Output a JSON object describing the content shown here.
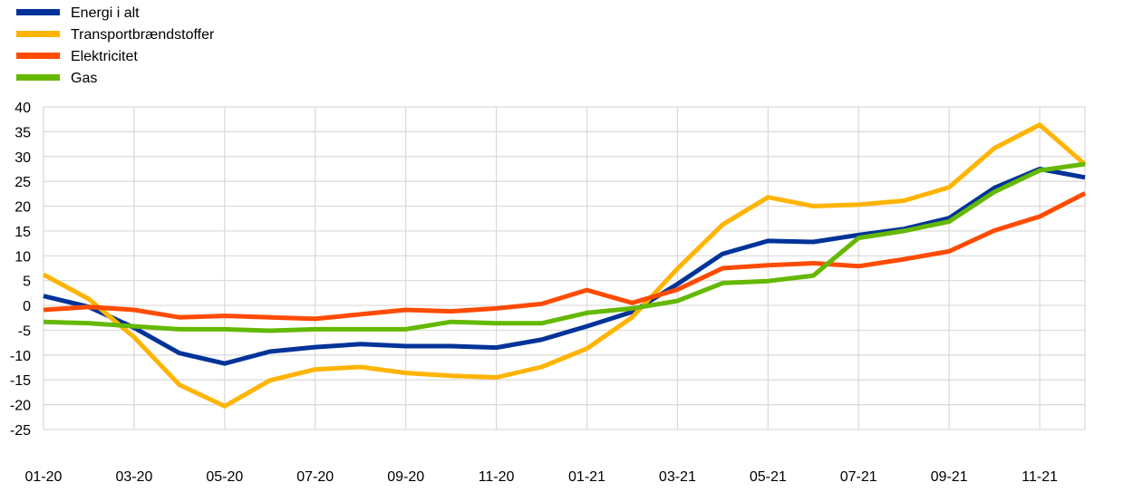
{
  "chart_data": {
    "type": "line",
    "x": [
      "01-20",
      "02-20",
      "03-20",
      "04-20",
      "05-20",
      "06-20",
      "07-20",
      "08-20",
      "09-20",
      "10-20",
      "11-20",
      "12-20",
      "01-21",
      "02-21",
      "03-21",
      "04-21",
      "05-21",
      "06-21",
      "07-21",
      "08-21",
      "09-21",
      "10-21",
      "11-21",
      "12-21"
    ],
    "x_tick_labels": [
      "01-20",
      "03-20",
      "05-20",
      "07-20",
      "09-20",
      "11-20",
      "01-21",
      "03-21",
      "05-21",
      "07-21",
      "09-21",
      "11-21"
    ],
    "y_ticks": [
      40,
      35,
      30,
      25,
      20,
      15,
      10,
      5,
      0,
      -5,
      -10,
      -15,
      -20,
      -25
    ],
    "ylim": [
      -25,
      40
    ],
    "grid": true,
    "legend_position": "top-left",
    "series": [
      {
        "name": "Energi i alt",
        "color": "#003399",
        "values": [
          1.9,
          -0.3,
          -4.5,
          -9.6,
          -11.7,
          -9.3,
          -8.4,
          -7.8,
          -8.2,
          -8.2,
          -8.5,
          -6.9,
          -4.2,
          -1.3,
          4.3,
          10.4,
          13.0,
          12.8,
          14.2,
          15.4,
          17.6,
          23.7,
          27.5,
          25.8
        ]
      },
      {
        "name": "Transportbrændstoffer",
        "color": "#FFB400",
        "values": [
          6.2,
          1.3,
          -6.4,
          -16.0,
          -20.3,
          -15.1,
          -12.9,
          -12.4,
          -13.6,
          -14.2,
          -14.5,
          -12.4,
          -8.7,
          -2.4,
          7.4,
          16.3,
          21.8,
          20.0,
          20.3,
          21.1,
          23.8,
          31.7,
          36.4,
          28.4
        ]
      },
      {
        "name": "Elektricitet",
        "color": "#FF4B00",
        "values": [
          -0.9,
          -0.3,
          -0.9,
          -2.4,
          -2.1,
          -2.4,
          -2.7,
          -1.8,
          -0.9,
          -1.2,
          -0.6,
          0.3,
          3.1,
          0.5,
          3.2,
          7.5,
          8.1,
          8.5,
          7.9,
          9.3,
          10.9,
          15.1,
          17.9,
          22.6
        ]
      },
      {
        "name": "Gas",
        "color": "#65B800",
        "values": [
          -3.3,
          -3.6,
          -4.2,
          -4.8,
          -4.8,
          -5.1,
          -4.8,
          -4.8,
          -4.8,
          -3.3,
          -3.6,
          -3.6,
          -1.5,
          -0.6,
          0.9,
          4.5,
          4.9,
          6.0,
          13.6,
          15.0,
          16.9,
          22.9,
          27.2,
          28.5
        ]
      }
    ]
  }
}
